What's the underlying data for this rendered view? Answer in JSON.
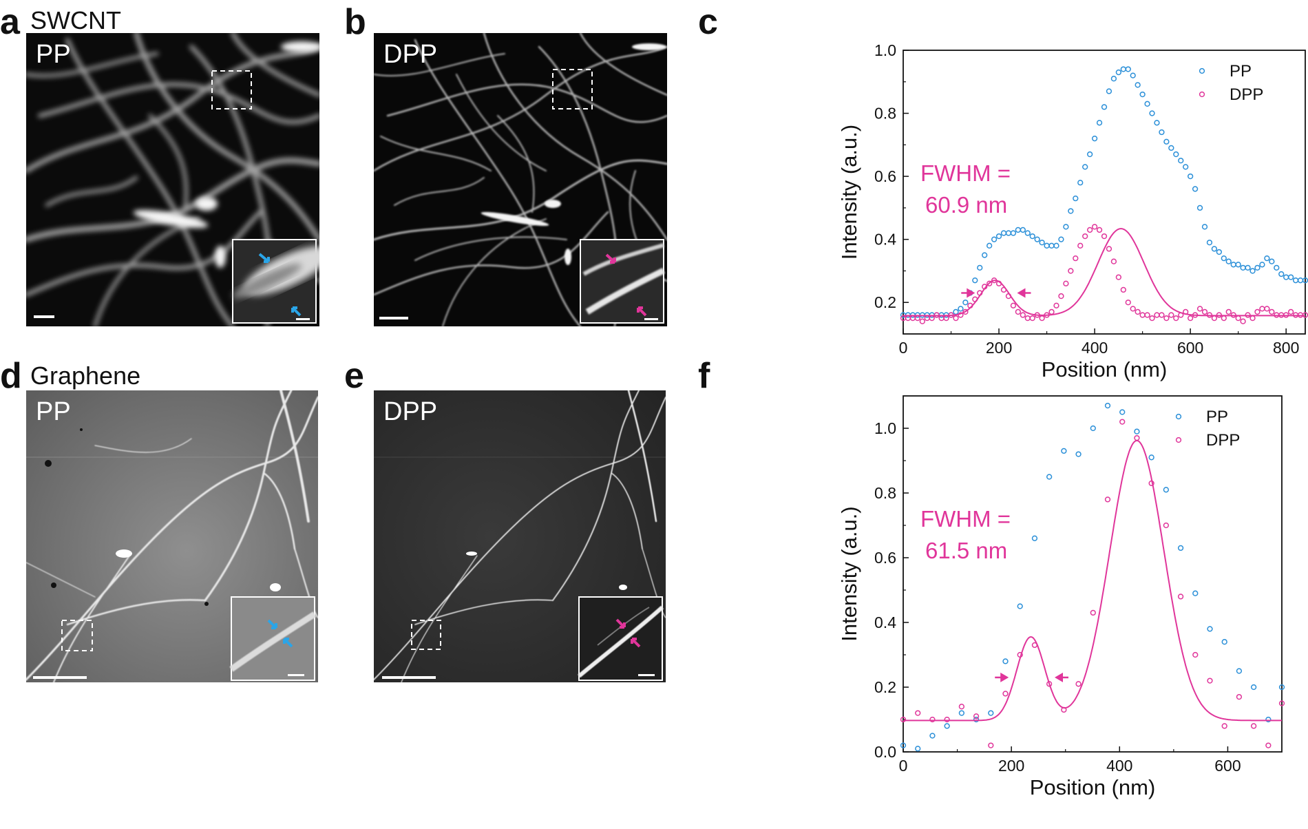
{
  "panels": {
    "a": {
      "letter": "a",
      "title": "SWCNT",
      "image_label": "PP"
    },
    "b": {
      "letter": "b",
      "image_label": "DPP"
    },
    "c": {
      "letter": "c"
    },
    "d": {
      "letter": "d",
      "title": "Graphene",
      "image_label": "PP"
    },
    "e": {
      "letter": "e",
      "image_label": "DPP"
    },
    "f": {
      "letter": "f"
    }
  },
  "colors": {
    "pp": "#2a8fd8",
    "dpp": "#e0359a"
  },
  "chart_data": [
    {
      "type": "scatter",
      "panel": "c",
      "xlabel": "Position (nm)",
      "ylabel": "Intensity (a.u.)",
      "xlim": [
        0,
        840
      ],
      "ylim": [
        0.1,
        1.0
      ],
      "xticks": [
        0,
        200,
        400,
        600,
        800
      ],
      "yticks": [
        0.2,
        0.4,
        0.6,
        0.8,
        1.0
      ],
      "ytick_labels": [
        "0.2",
        "0.4",
        "0.6",
        "0.8",
        "1.0"
      ],
      "legend": [
        "PP",
        "DPP"
      ],
      "legend_position": "top-right",
      "annotation": {
        "line1": "FWHM =",
        "line2": "60.9 nm"
      },
      "fwhm_arrows": {
        "left_x": 150,
        "right_x": 238,
        "y": 0.23
      },
      "series": [
        {
          "name": "PP",
          "marker": "open-circle",
          "x": [
            0,
            10,
            20,
            30,
            40,
            50,
            60,
            70,
            80,
            90,
            100,
            110,
            120,
            130,
            140,
            150,
            160,
            170,
            180,
            190,
            200,
            210,
            220,
            230,
            240,
            250,
            260,
            270,
            280,
            290,
            300,
            310,
            320,
            330,
            340,
            350,
            360,
            370,
            380,
            390,
            400,
            410,
            420,
            430,
            440,
            450,
            460,
            470,
            480,
            490,
            500,
            510,
            520,
            530,
            540,
            550,
            560,
            570,
            580,
            590,
            600,
            610,
            620,
            630,
            640,
            650,
            660,
            670,
            680,
            690,
            700,
            710,
            720,
            730,
            740,
            750,
            760,
            770,
            780,
            790,
            800,
            810,
            820,
            830,
            840
          ],
          "y": [
            0.16,
            0.16,
            0.16,
            0.16,
            0.16,
            0.16,
            0.16,
            0.16,
            0.16,
            0.16,
            0.16,
            0.17,
            0.18,
            0.2,
            0.23,
            0.27,
            0.31,
            0.35,
            0.38,
            0.4,
            0.41,
            0.42,
            0.42,
            0.42,
            0.43,
            0.43,
            0.42,
            0.41,
            0.4,
            0.39,
            0.38,
            0.38,
            0.38,
            0.4,
            0.44,
            0.49,
            0.53,
            0.58,
            0.63,
            0.67,
            0.72,
            0.77,
            0.82,
            0.87,
            0.91,
            0.93,
            0.94,
            0.94,
            0.92,
            0.89,
            0.86,
            0.83,
            0.8,
            0.77,
            0.74,
            0.71,
            0.69,
            0.67,
            0.65,
            0.63,
            0.6,
            0.56,
            0.5,
            0.44,
            0.39,
            0.37,
            0.36,
            0.34,
            0.33,
            0.32,
            0.32,
            0.31,
            0.31,
            0.3,
            0.31,
            0.32,
            0.34,
            0.33,
            0.31,
            0.29,
            0.28,
            0.28,
            0.27,
            0.27,
            0.27
          ]
        },
        {
          "name": "DPP",
          "marker": "open-circle",
          "fit": "double-gaussian",
          "x": [
            0,
            10,
            20,
            30,
            40,
            50,
            60,
            70,
            80,
            90,
            100,
            110,
            120,
            130,
            140,
            150,
            160,
            170,
            180,
            190,
            200,
            210,
            220,
            230,
            240,
            250,
            260,
            270,
            280,
            290,
            300,
            310,
            320,
            330,
            340,
            350,
            360,
            370,
            380,
            390,
            400,
            410,
            420,
            430,
            440,
            450,
            460,
            470,
            480,
            490,
            500,
            510,
            520,
            530,
            540,
            550,
            560,
            570,
            580,
            590,
            600,
            610,
            620,
            630,
            640,
            650,
            660,
            670,
            680,
            690,
            700,
            710,
            720,
            730,
            740,
            750,
            760,
            770,
            780,
            790,
            800,
            810,
            820,
            830,
            840
          ],
          "y": [
            0.15,
            0.15,
            0.15,
            0.15,
            0.14,
            0.15,
            0.15,
            0.16,
            0.15,
            0.15,
            0.16,
            0.15,
            0.16,
            0.17,
            0.19,
            0.21,
            0.23,
            0.25,
            0.26,
            0.27,
            0.26,
            0.24,
            0.22,
            0.19,
            0.17,
            0.16,
            0.15,
            0.15,
            0.16,
            0.15,
            0.16,
            0.17,
            0.19,
            0.22,
            0.26,
            0.3,
            0.34,
            0.38,
            0.41,
            0.43,
            0.44,
            0.43,
            0.41,
            0.37,
            0.33,
            0.28,
            0.24,
            0.2,
            0.18,
            0.17,
            0.16,
            0.16,
            0.15,
            0.16,
            0.16,
            0.15,
            0.16,
            0.15,
            0.16,
            0.17,
            0.15,
            0.16,
            0.18,
            0.17,
            0.16,
            0.15,
            0.16,
            0.15,
            0.17,
            0.16,
            0.15,
            0.14,
            0.16,
            0.15,
            0.17,
            0.18,
            0.18,
            0.17,
            0.16,
            0.16,
            0.16,
            0.17,
            0.16,
            0.16,
            0.16
          ],
          "fit_params": {
            "baseline": 0.158,
            "peaks": [
              {
                "amp": 0.112,
                "center": 192,
                "sigma": 30
              },
              {
                "amp": 0.276,
                "center": 455,
                "sigma": 48
              }
            ]
          }
        }
      ]
    },
    {
      "type": "scatter",
      "panel": "f",
      "xlabel": "Position (nm)",
      "ylabel": "Intensity (a.u.)",
      "xlim": [
        0,
        700
      ],
      "ylim": [
        0.0,
        1.1
      ],
      "xticks": [
        0,
        200,
        400,
        600
      ],
      "yticks": [
        0.0,
        0.2,
        0.4,
        0.6,
        0.8,
        1.0
      ],
      "ytick_labels": [
        "0.0",
        "0.2",
        "0.4",
        "0.6",
        "0.8",
        "1.0"
      ],
      "legend": [
        "PP",
        "DPP"
      ],
      "legend_position": "top-right",
      "annotation": {
        "line1": "FWHM =",
        "line2": "61.5 nm"
      },
      "fwhm_arrows": {
        "left_x": 195,
        "right_x": 280,
        "y": 0.23
      },
      "series": [
        {
          "name": "PP",
          "marker": "open-circle",
          "x": [
            0,
            27,
            54,
            81,
            108,
            135,
            162,
            189,
            216,
            243,
            270,
            297,
            324,
            351,
            378,
            405,
            432,
            459,
            486,
            513,
            540,
            567,
            594,
            621,
            648,
            675,
            700
          ],
          "y": [
            0.02,
            0.01,
            0.05,
            0.08,
            0.12,
            0.1,
            0.12,
            0.28,
            0.45,
            0.66,
            0.85,
            0.93,
            0.92,
            1.0,
            1.07,
            1.05,
            0.99,
            0.91,
            0.81,
            0.63,
            0.49,
            0.38,
            0.34,
            0.25,
            0.2,
            0.1,
            0.2
          ]
        },
        {
          "name": "DPP",
          "marker": "open-circle",
          "fit": "double-gaussian",
          "x": [
            0,
            27,
            54,
            81,
            108,
            135,
            162,
            189,
            216,
            243,
            270,
            297,
            324,
            351,
            378,
            405,
            432,
            459,
            486,
            513,
            540,
            567,
            594,
            621,
            648,
            675,
            700
          ],
          "y": [
            0.1,
            0.12,
            0.1,
            0.1,
            0.14,
            0.11,
            0.02,
            0.18,
            0.3,
            0.33,
            0.21,
            0.13,
            0.21,
            0.43,
            0.78,
            1.02,
            0.97,
            0.83,
            0.7,
            0.48,
            0.3,
            0.22,
            0.08,
            0.17,
            0.08,
            0.02,
            0.15
          ],
          "fit_params": {
            "baseline": 0.097,
            "peaks": [
              {
                "amp": 0.258,
                "center": 236,
                "sigma": 26
              },
              {
                "amp": 0.865,
                "center": 432,
                "sigma": 50
              }
            ]
          }
        }
      ]
    }
  ]
}
